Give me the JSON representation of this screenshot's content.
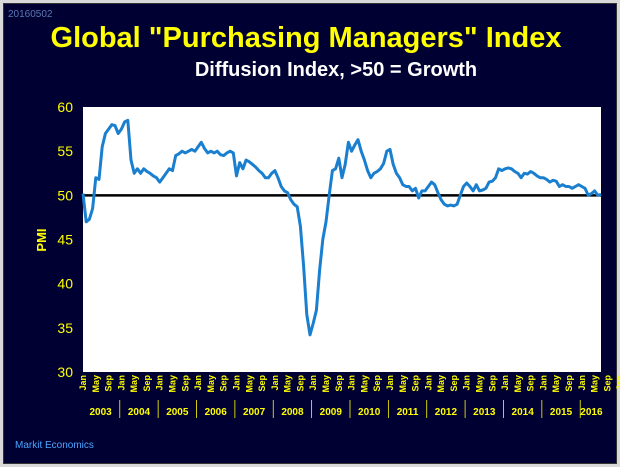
{
  "header": {
    "date_code": "20160502",
    "title": "Global \"Purchasing Managers\" Index",
    "subtitle": "Diffusion Index, >50 = Growth"
  },
  "footer": {
    "source": "Markit Economics"
  },
  "colors": {
    "background": "#000033",
    "plot_bg": "#ffffff",
    "line": "#1a7fcf",
    "text": "#ffff00"
  },
  "chart_data": {
    "type": "line",
    "title": "Global \"Purchasing Managers\" Index",
    "subtitle": "Diffusion Index, >50 = Growth",
    "ylabel": "PMI",
    "xlabel": "",
    "ylim": [
      30,
      60
    ],
    "yticks": [
      30,
      35,
      40,
      45,
      50,
      55,
      60
    ],
    "reference_line": 50,
    "grid": false,
    "legend": "none",
    "x_start": "2003-01",
    "x_end": "2016-05",
    "x_tick_labels": [
      "Jan",
      "May",
      "Sep",
      "Jan",
      "May",
      "Sep",
      "Jan",
      "May",
      "Sep",
      "Jan",
      "May",
      "Sep",
      "Jan",
      "May",
      "Sep",
      "Jan",
      "May",
      "Sep",
      "Jan",
      "May",
      "Sep",
      "Jan",
      "May",
      "Sep",
      "Jan",
      "May",
      "Sep",
      "Jan",
      "May",
      "Sep",
      "Jan",
      "May",
      "Sep",
      "Jan",
      "May",
      "Sep",
      "Jan",
      "May",
      "Sep",
      "Jan",
      "May",
      "Sep",
      "Jan",
      "May"
    ],
    "years": [
      "2003",
      "2004",
      "2005",
      "2006",
      "2007",
      "2008",
      "2009",
      "2010",
      "2011",
      "2012",
      "2013",
      "2014",
      "2015",
      "2016"
    ],
    "series": [
      {
        "values": [
          50.2,
          47.0,
          47.3,
          48.5,
          52.0,
          51.8,
          55.5,
          57.0,
          57.5,
          58.0,
          57.9,
          57.0,
          57.5,
          58.3,
          58.5,
          54.0,
          52.5,
          53.0,
          52.5,
          53.0,
          52.7,
          52.5,
          52.2,
          52.0,
          51.5,
          52.0,
          52.5,
          53.0,
          52.8,
          54.5,
          54.7,
          55.0,
          54.8,
          55.0,
          55.2,
          55.0,
          55.5,
          56.0,
          55.3,
          54.8,
          55.0,
          54.8,
          55.0,
          54.6,
          54.5,
          54.8,
          55.0,
          54.8,
          52.2,
          53.7,
          53.0,
          54.0,
          53.8,
          53.5,
          53.2,
          52.8,
          52.5,
          52.0,
          52.0,
          52.5,
          52.8,
          52.0,
          51.0,
          50.5,
          50.3,
          49.5,
          49.0,
          48.7,
          46.5,
          42.0,
          36.5,
          34.2,
          35.5,
          37.0,
          41.5,
          45.0,
          47.0,
          50.0,
          52.8,
          53.0,
          54.2,
          52.0,
          53.5,
          56.0,
          55.0,
          55.7,
          56.3,
          55.0,
          54.0,
          52.8,
          52.0,
          52.5,
          52.7,
          53.0,
          53.6,
          55.0,
          55.2,
          53.5,
          52.5,
          52.0,
          51.2,
          51.0,
          51.0,
          50.5,
          50.8,
          49.7,
          50.5,
          50.5,
          51.0,
          51.5,
          51.2,
          50.3,
          49.5,
          49.0,
          48.8,
          48.9,
          48.8,
          49.0,
          50.0,
          51.0,
          51.4,
          51.0,
          50.5,
          51.2,
          50.5,
          50.6,
          50.8,
          51.5,
          51.6,
          52.0,
          53.0,
          52.8,
          53.0,
          53.1,
          53.0,
          52.7,
          52.5,
          52.0,
          52.5,
          52.4,
          52.7,
          52.5,
          52.2,
          52.0,
          52.0,
          51.8,
          51.5,
          51.7,
          51.6,
          51.0,
          51.2,
          51.0,
          51.0,
          50.8,
          51.0,
          51.2,
          51.0,
          50.8,
          50.0,
          50.2,
          50.5,
          50.0,
          50.1
        ]
      }
    ]
  }
}
